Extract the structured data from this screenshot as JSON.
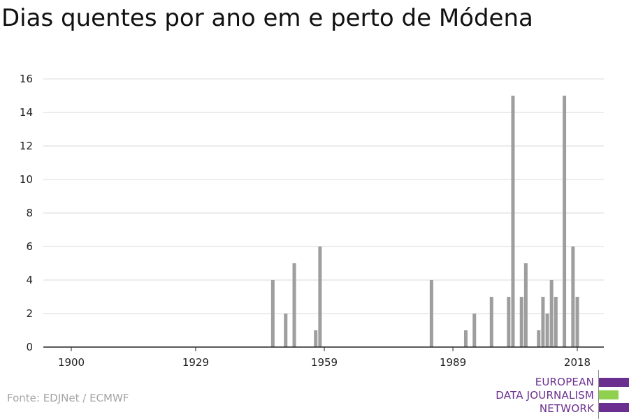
{
  "title": "Dias quentes por ano em e perto de Módena",
  "source": "Fonte: EDJNet / ECMWF",
  "logo": {
    "line1": "EUROPEAN",
    "line2": "DATA JOURNALISM",
    "line3": "NETWORK",
    "purple": "#6b2f8f",
    "green": "#8fd14f"
  },
  "colors": {
    "bar": "#9e9e9e",
    "grid": "#d9d9d9",
    "axis": "#222222"
  },
  "chart_data": {
    "type": "bar",
    "title": "Dias quentes por ano em e perto de Módena",
    "xlabel": "",
    "ylabel": "",
    "xlim": [
      1900,
      2018
    ],
    "ylim": [
      0,
      16
    ],
    "xticks": [
      1900,
      1929,
      1959,
      1989,
      2018
    ],
    "yticks": [
      0,
      2,
      4,
      6,
      8,
      10,
      12,
      14,
      16
    ],
    "grid": true,
    "x": [
      1947,
      1950,
      1952,
      1957,
      1958,
      1984,
      1992,
      1994,
      1998,
      2002,
      2003,
      2005,
      2006,
      2009,
      2010,
      2011,
      2012,
      2013,
      2015,
      2017,
      2018
    ],
    "values": [
      4,
      2,
      5,
      1,
      6,
      4,
      1,
      2,
      3,
      3,
      15,
      3,
      5,
      1,
      3,
      2,
      4,
      3,
      15,
      6,
      3
    ]
  }
}
